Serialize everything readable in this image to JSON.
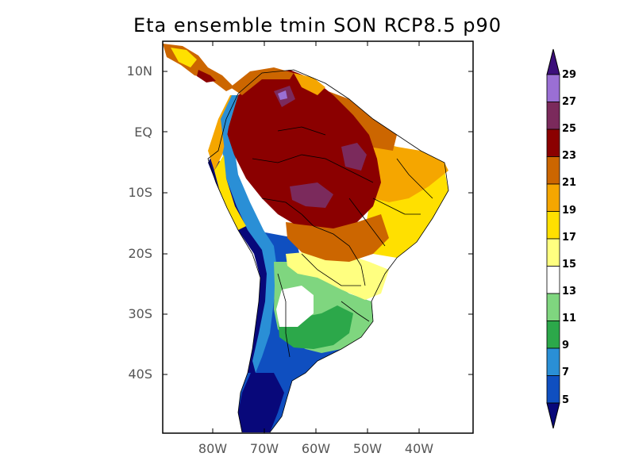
{
  "title": "Eta ensemble tmin SON RCP8.5 p90",
  "lat_labels": [
    "10N",
    "EQ",
    "10S",
    "20S",
    "30S",
    "40S"
  ],
  "lon_labels": [
    "80W",
    "70W",
    "60W",
    "50W",
    "40W"
  ],
  "colorbar": {
    "labels": [
      "29",
      "27",
      "25",
      "23",
      "21",
      "19",
      "17",
      "15",
      "13",
      "11",
      "9",
      "7",
      "5"
    ],
    "colors": [
      "#3c0f7a",
      "#9a6fd4",
      "#7b2a5c",
      "#8b0000",
      "#cc6600",
      "#f5a600",
      "#ffe000",
      "#ffff80",
      "#ffffff",
      "#7fd67f",
      "#2ca84a",
      "#2a8fd6",
      "#0f4fc0",
      "#08087a"
    ]
  },
  "palette": {
    "ocean": "#ffffff",
    "land_border": "#000000",
    "frame": "#000000"
  }
}
